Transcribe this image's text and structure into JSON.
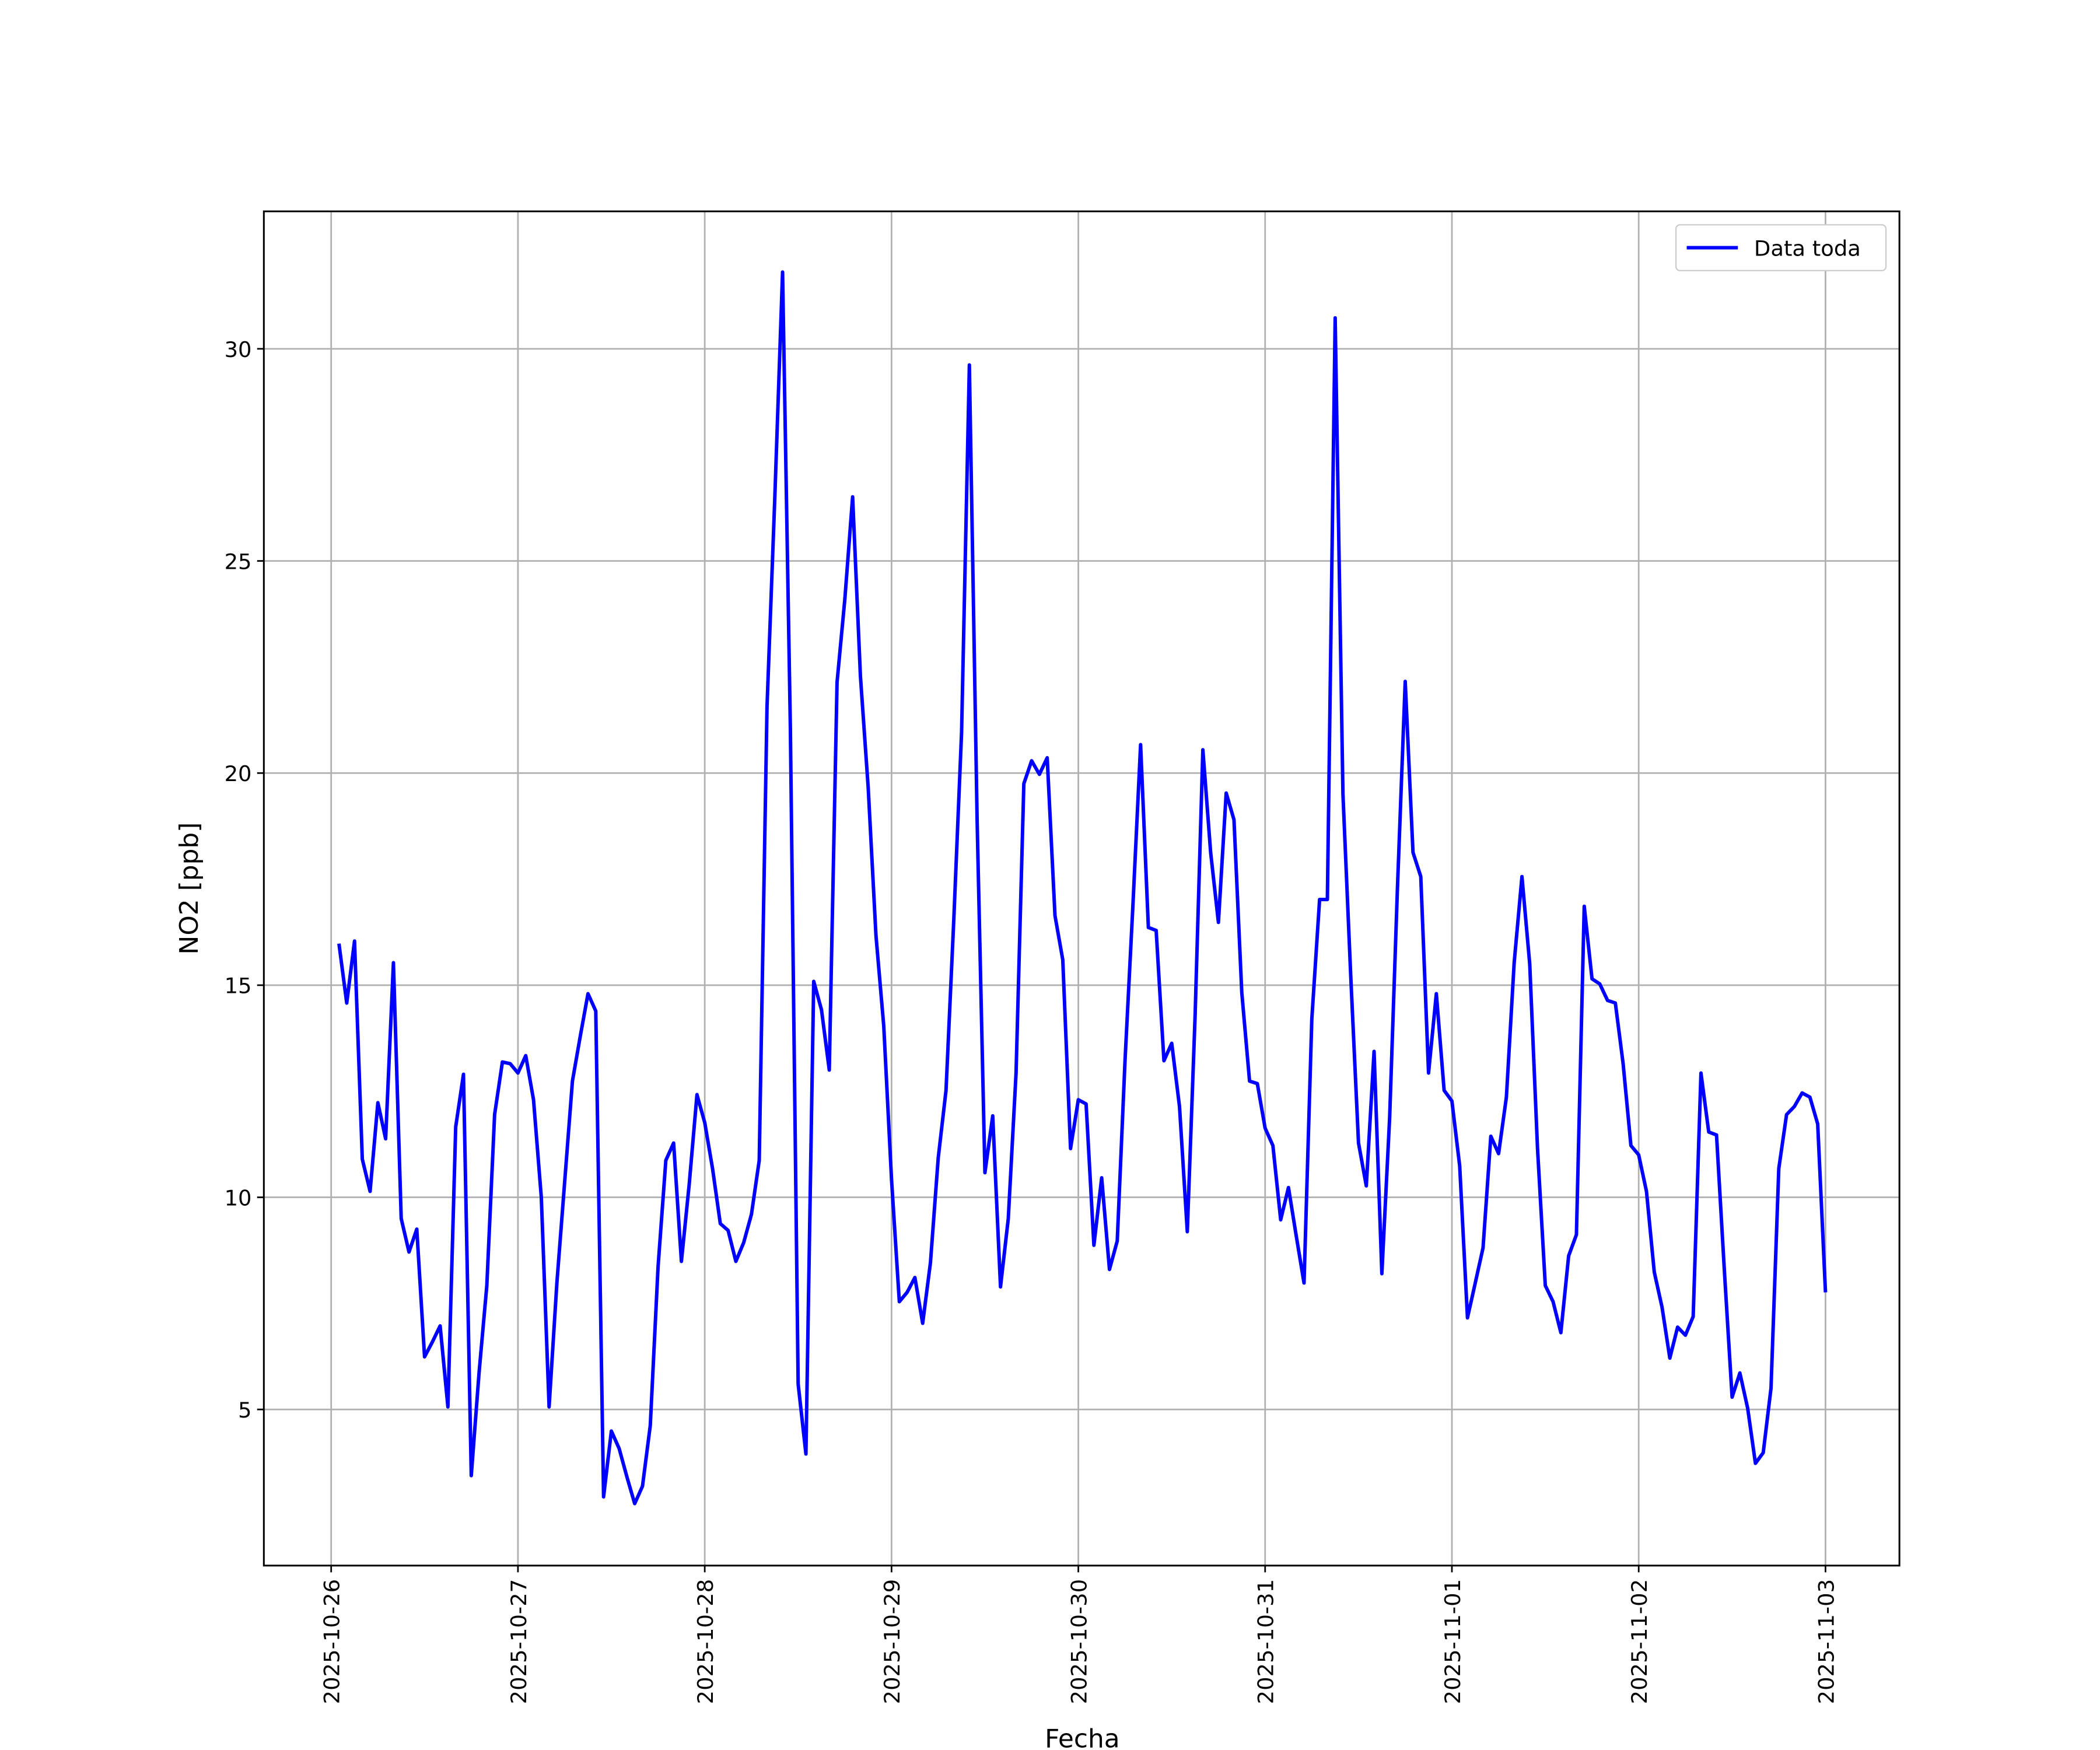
{
  "chart_data": {
    "type": "line",
    "xlabel": "Fecha",
    "ylabel": "NO2 [ppb]",
    "xlim": [
      "2025-10-25 15:21",
      "2025-11-03 09:30"
    ],
    "xticks": [
      "2025-10-26",
      "2025-10-27",
      "2025-10-28",
      "2025-10-29",
      "2025-10-30",
      "2025-10-31",
      "2025-11-01",
      "2025-11-02",
      "2025-11-03"
    ],
    "ylim": [
      1.32,
      33.24
    ],
    "yticks": [
      5,
      10,
      15,
      20,
      25,
      30
    ],
    "grid": true,
    "legend": "upper right",
    "x": [
      "2025-10-26 01:00",
      "2025-10-26 02:00",
      "2025-10-26 03:00",
      "2025-10-26 04:00",
      "2025-10-26 05:00",
      "2025-10-26 06:00",
      "2025-10-26 07:00",
      "2025-10-26 08:00",
      "2025-10-26 09:00",
      "2025-10-26 10:00",
      "2025-10-26 11:00",
      "2025-10-26 12:00",
      "2025-10-26 13:00",
      "2025-10-26 14:00",
      "2025-10-26 15:00",
      "2025-10-26 16:00",
      "2025-10-26 17:00",
      "2025-10-26 18:00",
      "2025-10-26 19:00",
      "2025-10-26 20:00",
      "2025-10-26 21:00",
      "2025-10-26 22:00",
      "2025-10-26 23:00",
      "2025-10-27 00:00",
      "2025-10-27 01:00",
      "2025-10-27 02:00",
      "2025-10-27 03:00",
      "2025-10-27 04:00",
      "2025-10-27 05:00",
      "2025-10-27 06:00",
      "2025-10-27 07:00",
      "2025-10-27 08:00",
      "2025-10-27 09:00",
      "2025-10-27 10:00",
      "2025-10-27 11:00",
      "2025-10-27 12:00",
      "2025-10-27 13:00",
      "2025-10-27 14:00",
      "2025-10-27 15:00",
      "2025-10-27 16:00",
      "2025-10-27 17:00",
      "2025-10-27 18:00",
      "2025-10-27 19:00",
      "2025-10-27 20:00",
      "2025-10-27 21:00",
      "2025-10-27 22:00",
      "2025-10-27 23:00",
      "2025-10-28 00:00",
      "2025-10-28 01:00",
      "2025-10-28 02:00",
      "2025-10-28 03:00",
      "2025-10-28 04:00",
      "2025-10-28 05:00",
      "2025-10-28 06:00",
      "2025-10-28 07:00",
      "2025-10-28 08:00",
      "2025-10-28 09:00",
      "2025-10-28 10:00",
      "2025-10-28 11:00",
      "2025-10-28 12:00",
      "2025-10-28 13:00",
      "2025-10-28 14:00",
      "2025-10-28 15:00",
      "2025-10-28 16:00",
      "2025-10-28 17:00",
      "2025-10-28 18:00",
      "2025-10-28 19:00",
      "2025-10-28 20:00",
      "2025-10-28 21:00",
      "2025-10-28 22:00",
      "2025-10-28 23:00",
      "2025-10-29 00:00",
      "2025-10-29 01:00",
      "2025-10-29 02:00",
      "2025-10-29 03:00",
      "2025-10-29 04:00",
      "2025-10-29 05:00",
      "2025-10-29 06:00",
      "2025-10-29 07:00",
      "2025-10-29 08:00",
      "2025-10-29 09:00",
      "2025-10-29 10:00",
      "2025-10-29 11:00",
      "2025-10-29 12:00",
      "2025-10-29 13:00",
      "2025-10-29 14:00",
      "2025-10-29 15:00",
      "2025-10-29 16:00",
      "2025-10-29 17:00",
      "2025-10-29 18:00",
      "2025-10-29 19:00",
      "2025-10-29 20:00",
      "2025-10-29 21:00",
      "2025-10-29 22:00",
      "2025-10-29 23:00",
      "2025-10-30 00:00",
      "2025-10-30 01:00",
      "2025-10-30 02:00",
      "2025-10-30 03:00",
      "2025-10-30 04:00",
      "2025-10-30 05:00",
      "2025-10-30 06:00",
      "2025-10-30 07:00",
      "2025-10-30 08:00",
      "2025-10-30 09:00",
      "2025-10-30 10:00",
      "2025-10-30 11:00",
      "2025-10-30 12:00",
      "2025-10-30 13:00",
      "2025-10-30 14:00",
      "2025-10-30 15:00",
      "2025-10-30 16:00",
      "2025-10-30 17:00",
      "2025-10-30 18:00",
      "2025-10-30 19:00",
      "2025-10-30 20:00",
      "2025-10-30 21:00",
      "2025-10-30 22:00",
      "2025-10-30 23:00",
      "2025-10-31 00:00",
      "2025-10-31 01:00",
      "2025-10-31 02:00",
      "2025-10-31 03:00",
      "2025-10-31 04:00",
      "2025-10-31 05:00",
      "2025-10-31 06:00",
      "2025-10-31 07:00",
      "2025-10-31 08:00",
      "2025-10-31 09:00",
      "2025-10-31 10:00",
      "2025-10-31 11:00",
      "2025-10-31 12:00",
      "2025-10-31 13:00",
      "2025-10-31 14:00",
      "2025-10-31 15:00",
      "2025-10-31 16:00",
      "2025-10-31 17:00",
      "2025-10-31 18:00",
      "2025-10-31 19:00",
      "2025-10-31 20:00",
      "2025-10-31 21:00",
      "2025-10-31 22:00",
      "2025-10-31 23:00",
      "2025-11-01 00:00",
      "2025-11-01 01:00",
      "2025-11-01 02:00",
      "2025-11-01 03:00",
      "2025-11-01 04:00",
      "2025-11-01 05:00",
      "2025-11-01 06:00",
      "2025-11-01 07:00",
      "2025-11-01 08:00",
      "2025-11-01 09:00",
      "2025-11-01 10:00",
      "2025-11-01 11:00",
      "2025-11-01 12:00",
      "2025-11-01 13:00",
      "2025-11-01 14:00",
      "2025-11-01 15:00",
      "2025-11-01 16:00",
      "2025-11-01 17:00",
      "2025-11-01 18:00",
      "2025-11-01 19:00",
      "2025-11-01 20:00",
      "2025-11-01 21:00",
      "2025-11-01 22:00",
      "2025-11-01 23:00",
      "2025-11-02 00:00",
      "2025-11-02 01:00",
      "2025-11-02 02:00",
      "2025-11-02 03:00",
      "2025-11-02 04:00",
      "2025-11-02 05:00",
      "2025-11-02 06:00",
      "2025-11-02 07:00",
      "2025-11-02 08:00",
      "2025-11-02 09:00",
      "2025-11-02 10:00",
      "2025-11-02 11:00",
      "2025-11-02 12:00",
      "2025-11-02 13:00",
      "2025-11-02 14:00",
      "2025-11-02 15:00",
      "2025-11-02 16:00",
      "2025-11-02 17:00",
      "2025-11-02 18:00",
      "2025-11-02 19:00",
      "2025-11-02 20:00",
      "2025-11-02 21:00",
      "2025-11-02 22:00",
      "2025-11-02 23:00",
      "2025-11-03 00:00"
    ],
    "series": [
      {
        "name": "Data toda",
        "color": "#0000ff",
        "values": [
          15.98,
          14.58,
          16.04,
          10.9,
          10.14,
          12.23,
          11.38,
          15.53,
          9.5,
          8.71,
          9.25,
          6.24,
          6.59,
          6.97,
          5.06,
          11.66,
          12.9,
          3.44,
          5.86,
          7.92,
          11.95,
          13.19,
          13.15,
          12.93,
          13.34,
          12.3,
          10.0,
          5.06,
          7.98,
          10.36,
          12.74,
          13.79,
          14.8,
          14.39,
          2.94,
          4.49,
          4.08,
          3.41,
          2.78,
          3.19,
          4.62,
          8.36,
          10.87,
          11.28,
          8.49,
          10.3,
          12.42,
          11.76,
          10.68,
          9.38,
          9.22,
          8.49,
          8.93,
          9.6,
          10.87,
          21.56,
          26.48,
          31.81,
          21.08,
          5.6,
          3.95,
          15.09,
          14.42,
          13.0,
          22.14,
          24.1,
          26.51,
          22.29,
          19.66,
          16.17,
          14.04,
          10.42,
          7.54,
          7.76,
          8.11,
          7.03,
          8.46,
          10.93,
          12.52,
          16.55,
          20.96,
          29.62,
          18.86,
          10.58,
          11.92,
          7.89,
          9.5,
          12.93,
          19.75,
          20.29,
          19.97,
          20.36,
          16.64,
          15.6,
          11.15,
          12.3,
          12.2,
          8.87,
          10.46,
          8.3,
          8.97,
          13.22,
          16.83,
          20.67,
          16.36,
          16.29,
          13.22,
          13.63,
          12.14,
          9.19,
          14.26,
          20.55,
          18.13,
          16.48,
          19.53,
          18.9,
          14.83,
          12.74,
          12.68,
          11.63,
          11.22,
          9.47,
          10.23,
          9.09,
          7.98,
          14.2,
          17.02,
          17.02,
          30.73,
          19.5,
          15.22,
          11.28,
          10.27,
          13.44,
          8.2,
          11.88,
          17.28,
          22.16,
          18.13,
          17.56,
          12.93,
          14.8,
          12.52,
          12.27,
          10.74,
          7.16,
          7.98,
          8.81,
          11.44,
          11.03,
          12.36,
          15.53,
          17.56,
          15.5,
          11.15,
          7.92,
          7.54,
          6.81,
          8.62,
          9.12,
          16.86,
          15.15,
          15.03,
          14.64,
          14.58,
          13.15,
          11.22,
          11.0,
          10.14,
          8.24,
          7.41,
          6.21,
          6.94,
          6.75,
          7.19,
          12.93,
          11.54,
          11.47,
          8.3,
          5.29,
          5.86,
          5.03,
          3.73,
          3.98,
          5.5,
          10.68,
          11.95,
          12.14,
          12.46,
          12.36,
          11.73,
          7.76
        ]
      }
    ]
  }
}
